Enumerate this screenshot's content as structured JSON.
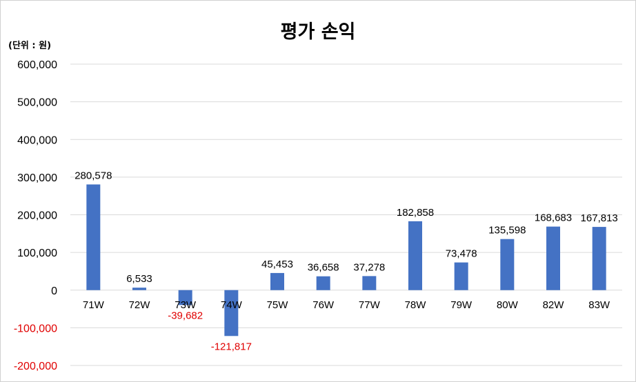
{
  "chart_data": {
    "type": "bar",
    "title": "평가 손익",
    "unit_label": "(단위 : 원)",
    "categories": [
      "71W",
      "72W",
      "73W",
      "74W",
      "75W",
      "76W",
      "77W",
      "78W",
      "79W",
      "80W",
      "82W",
      "83W"
    ],
    "values": [
      280578,
      6533,
      -39682,
      -121817,
      45453,
      36658,
      37278,
      182858,
      73478,
      135598,
      168683,
      167813
    ],
    "data_labels": [
      "280,578",
      "6,533",
      "-39,682",
      "-121,817",
      "45,453",
      "36,658",
      "37,278",
      "182,858",
      "73,478",
      "135,598",
      "168,683",
      "167,813"
    ],
    "y_ticks": [
      600000,
      500000,
      400000,
      300000,
      200000,
      100000,
      0,
      -100000,
      -200000
    ],
    "y_tick_labels": [
      "600,000",
      "500,000",
      "400,000",
      "300,000",
      "200,000",
      "100,000",
      "0",
      "-100,000",
      "-200,000"
    ],
    "ylim": [
      -200000,
      600000
    ],
    "grid": true,
    "legend": "none",
    "colors": {
      "bar": "#4472C4",
      "negative_text": "#E00000",
      "positive_text": "#000000",
      "grid": "#D9D9D9"
    }
  }
}
